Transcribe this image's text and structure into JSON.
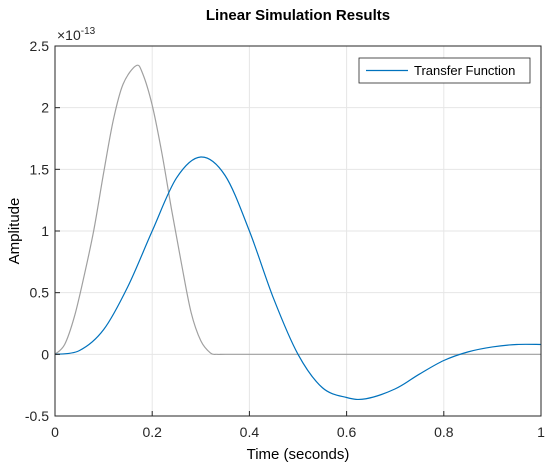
{
  "chart_data": {
    "type": "line",
    "title": "Linear Simulation Results",
    "xlabel": "Time (seconds)",
    "ylabel": "Amplitude",
    "xlim": [
      0,
      1
    ],
    "ylim": [
      -0.5,
      2.5
    ],
    "y_exponent_label": "×10",
    "y_exponent_power": "-13",
    "x_ticks": [
      0,
      0.2,
      0.4,
      0.6,
      0.8,
      1
    ],
    "x_tick_labels": [
      "0",
      "0.2",
      "0.4",
      "0.6",
      "0.8",
      "1"
    ],
    "y_ticks": [
      -0.5,
      0,
      0.5,
      1,
      1.5,
      2,
      2.5
    ],
    "y_tick_labels": [
      "-0.5",
      "0",
      "0.5",
      "1",
      "1.5",
      "2",
      "2.5"
    ],
    "grid": true,
    "legend_position": "top-right",
    "series": [
      {
        "name": "",
        "role": "input",
        "color": "#a0a0a0",
        "x": [
          0,
          0.02,
          0.04,
          0.06,
          0.08,
          0.1,
          0.12,
          0.14,
          0.1667,
          0.18,
          0.2,
          0.22,
          0.24,
          0.26,
          0.28,
          0.3,
          0.32,
          0.333,
          0.35,
          0.4,
          0.5,
          0.6,
          0.7,
          0.8,
          0.9,
          1.0
        ],
        "y": [
          0,
          0.081,
          0.307,
          0.638,
          1.01,
          1.47,
          1.9,
          2.19,
          2.34,
          2.28,
          2.02,
          1.63,
          1.17,
          0.74,
          0.34,
          0.11,
          0.01,
          0,
          0,
          0,
          0,
          0,
          0,
          0,
          0,
          0
        ]
      },
      {
        "name": "Transfer Function",
        "role": "output",
        "color": "#0072bd",
        "x": [
          0,
          0.05,
          0.1,
          0.15,
          0.2,
          0.25,
          0.3,
          0.35,
          0.4,
          0.45,
          0.5,
          0.55,
          0.6,
          0.64,
          0.7,
          0.75,
          0.8,
          0.85,
          0.9,
          0.95,
          1.0
        ],
        "y": [
          0,
          0.03,
          0.2,
          0.55,
          1.0,
          1.43,
          1.6,
          1.45,
          1.0,
          0.45,
          0.0,
          -0.27,
          -0.35,
          -0.36,
          -0.28,
          -0.16,
          -0.05,
          0.02,
          0.06,
          0.08,
          0.08
        ]
      }
    ]
  }
}
